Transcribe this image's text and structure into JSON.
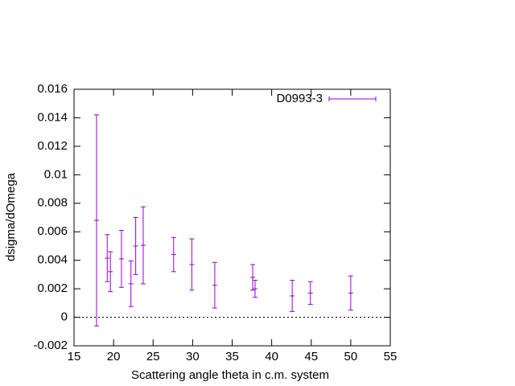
{
  "chart_data": {
    "type": "errorbar",
    "xlabel": "Scattering angle theta in c.m. system",
    "ylabel": "dsigma/dOmega",
    "xlim": [
      15,
      55
    ],
    "xticks": [
      15,
      20,
      25,
      30,
      35,
      40,
      45,
      50,
      55
    ],
    "ylim": [
      -0.002,
      0.016
    ],
    "yticks": [
      -0.002,
      0,
      0.002,
      0.004,
      0.006,
      0.008,
      0.01,
      0.012,
      0.014,
      0.016
    ],
    "zero_axis": true,
    "legend": "upper right",
    "series": [
      {
        "name": "D0993-3",
        "color": "#9400d3",
        "x": [
          17.85,
          19.2,
          19.6,
          21.0,
          22.2,
          22.8,
          23.75,
          27.6,
          29.9,
          32.8,
          37.6,
          37.9,
          42.6,
          44.9,
          50.0
        ],
        "values": [
          0.0068,
          0.00415,
          0.0032,
          0.0041,
          0.00235,
          0.005,
          0.00505,
          0.0044,
          0.0037,
          0.00225,
          0.0028,
          0.002,
          0.0015,
          0.0017,
          0.0017
        ],
        "errors": [
          0.0074,
          0.00165,
          0.0014,
          0.002,
          0.0016,
          0.002,
          0.0027,
          0.0012,
          0.0018,
          0.0016,
          0.0009,
          0.0006,
          0.0011,
          0.0008,
          0.0012
        ]
      }
    ]
  }
}
